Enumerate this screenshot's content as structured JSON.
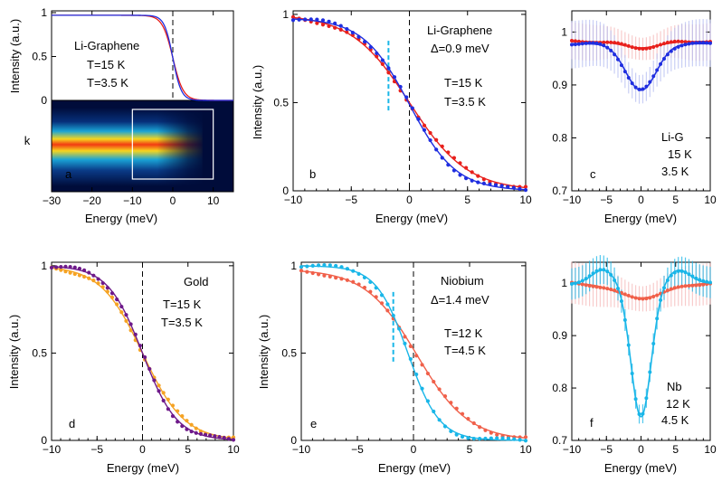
{
  "figure": {
    "xlabel": "Energy (meV)",
    "ylabel": "Intensity (a.u.)"
  },
  "colors": {
    "red": "#e8201c",
    "blue": "#1f2ee0",
    "orange": "#f5a324",
    "purple": "#6e1a8a",
    "salmon": "#f0604a",
    "cyan": "#19b6e8",
    "pink_bars": "#f6b9b9",
    "lightblue_bars": "#b7bff2"
  },
  "chart_data": [
    {
      "id": "a",
      "type": "line",
      "panel_label": "a",
      "legend": [
        "Li-Graphene",
        "T=15 K",
        "T=3.5 K"
      ],
      "xlabel": "Energy (meV)",
      "ylabel": "Intensity (a.u.)",
      "image_ylabel": "k",
      "xlim": [
        -30,
        15
      ],
      "ylim": [
        0,
        1
      ],
      "xticks": [
        -30,
        -20,
        -10,
        0,
        10
      ],
      "yticks": [
        0,
        0.5,
        1
      ],
      "ytick_labels": [
        "0",
        "0.5",
        "1"
      ],
      "series": [
        {
          "name": "T=15 K",
          "color": "red",
          "model": "fermi",
          "kT": 1.29,
          "amp": 0.97
        },
        {
          "name": "T=3.5 K",
          "color": "blue",
          "model": "fermi",
          "kT": 1.05,
          "amp": 0.97
        }
      ],
      "inset_box_x": [
        -10,
        10
      ]
    },
    {
      "id": "b",
      "type": "line+scatter",
      "panel_label": "b",
      "legend": [
        "Li-Graphene",
        "Δ=0.9 meV",
        "T=15 K",
        "T=3.5 K"
      ],
      "xlabel": "Energy (meV)",
      "ylabel": "Intensity (a.u.)",
      "xlim": [
        -10,
        10
      ],
      "ylim": [
        0,
        1.02
      ],
      "xticks": [
        -10,
        -5,
        0,
        5,
        10
      ],
      "yticks": [
        0,
        0.5,
        1
      ],
      "ytick_labels": [
        "0",
        "0.5",
        "1"
      ],
      "gap_marker": {
        "x": -1.8,
        "y_range": [
          0.45,
          0.85
        ],
        "color": "cyan"
      },
      "series": [
        {
          "name": "T=15 K",
          "color": "red",
          "model": "fermi",
          "kT": 2.5,
          "amp": 1.0,
          "points": 40
        },
        {
          "name": "T=3.5 K",
          "color": "blue",
          "model": "fermi",
          "kT": 2.0,
          "amp": 0.98,
          "points": 40
        }
      ]
    },
    {
      "id": "c",
      "type": "line+scatter+errorbar",
      "panel_label": "c",
      "legend": [
        "Li-G",
        "15 K",
        "3.5 K"
      ],
      "xlabel": "Energy (meV)",
      "ylabel": "",
      "xlim": [
        -10,
        10
      ],
      "ylim": [
        0.7,
        1.04
      ],
      "xticks": [
        -10,
        -5,
        0,
        5,
        10
      ],
      "yticks": [
        0.7,
        0.8,
        0.9,
        1
      ],
      "ytick_labels": [
        "0.7",
        "0.8",
        "0.9",
        "1"
      ],
      "series": [
        {
          "name": "15 K",
          "color": "red",
          "bars": "pink_bars",
          "model": "gauss",
          "base": 0.982,
          "depth": 0.012,
          "sigma": 2.5,
          "points": 40,
          "err": 0.035
        },
        {
          "name": "3.5 K",
          "color": "blue",
          "bars": "lightblue_bars",
          "model": "gauss",
          "base": 0.978,
          "depth": 0.088,
          "sigma": 2.2,
          "points": 40,
          "err": 0.045
        }
      ]
    },
    {
      "id": "d",
      "type": "line+scatter",
      "panel_label": "d",
      "legend": [
        "Gold",
        "T=15 K",
        "T=3.5 K"
      ],
      "xlabel": "Energy (meV)",
      "ylabel": "Intensity (a.u.)",
      "xlim": [
        -10,
        10
      ],
      "ylim": [
        0,
        1.02
      ],
      "xticks": [
        -10,
        -5,
        0,
        5,
        10
      ],
      "yticks": [
        0,
        0.5,
        1
      ],
      "ytick_labels": [
        "0",
        "0.5",
        "1"
      ],
      "series": [
        {
          "name": "T=15 K",
          "color": "orange",
          "model": "fermi",
          "kT": 2.3,
          "amp": 1.0,
          "points": 40
        },
        {
          "name": "T=3.5 K",
          "color": "purple",
          "model": "fermi",
          "kT": 1.9,
          "amp": 1.0,
          "points": 40
        }
      ]
    },
    {
      "id": "e",
      "type": "line+scatter",
      "panel_label": "e",
      "legend": [
        "Niobium",
        "Δ=1.4 meV",
        "T=12 K",
        "T=4.5 K"
      ],
      "xlabel": "Energy (meV)",
      "ylabel": "Intensity (a.u.)",
      "xlim": [
        -10,
        10
      ],
      "ylim": [
        0,
        1.02
      ],
      "xticks": [
        -10,
        -5,
        0,
        5,
        10
      ],
      "yticks": [
        0,
        0.5,
        1
      ],
      "ytick_labels": [
        "0",
        "0.5",
        "1"
      ],
      "gap_marker": {
        "x": -1.8,
        "y_range": [
          0.45,
          0.85
        ],
        "color": "cyan"
      },
      "series": [
        {
          "name": "T=12 K",
          "color": "salmon",
          "model": "fermi",
          "kT": 2.3,
          "amp": 0.98,
          "shift": 0.3,
          "points": 40
        },
        {
          "name": "T=4.5 K",
          "color": "cyan",
          "model": "fermi",
          "kT": 1.4,
          "amp": 1.0,
          "shift": -0.5,
          "points": 40
        }
      ]
    },
    {
      "id": "f",
      "type": "line+scatter+errorbar",
      "panel_label": "f",
      "legend": [
        "Nb",
        "12 K",
        "4.5 K"
      ],
      "xlabel": "Energy (meV)",
      "ylabel": "",
      "xlim": [
        -10,
        10
      ],
      "ylim": [
        0.7,
        1.04
      ],
      "xticks": [
        -10,
        -5,
        0,
        5,
        10
      ],
      "yticks": [
        0.7,
        0.8,
        0.9,
        1
      ],
      "ytick_labels": [
        "0.7",
        "0.8",
        "0.9",
        "1"
      ],
      "series": [
        {
          "name": "12 K",
          "color": "salmon",
          "bars": "pink_bars",
          "model": "gauss",
          "base": 1.0,
          "depth": 0.028,
          "sigma": 3.5,
          "points": 40,
          "err": 0.04
        },
        {
          "name": "4.5 K",
          "color": "cyan",
          "bars": "cyan",
          "model": "gauss_peaks",
          "base": 1.0,
          "depth": 0.255,
          "sigma": 1.45,
          "peak": 0.025,
          "peak_pos": 5.5,
          "peak_sigma": 1.6,
          "points": 40,
          "err": 0.03
        }
      ]
    }
  ]
}
